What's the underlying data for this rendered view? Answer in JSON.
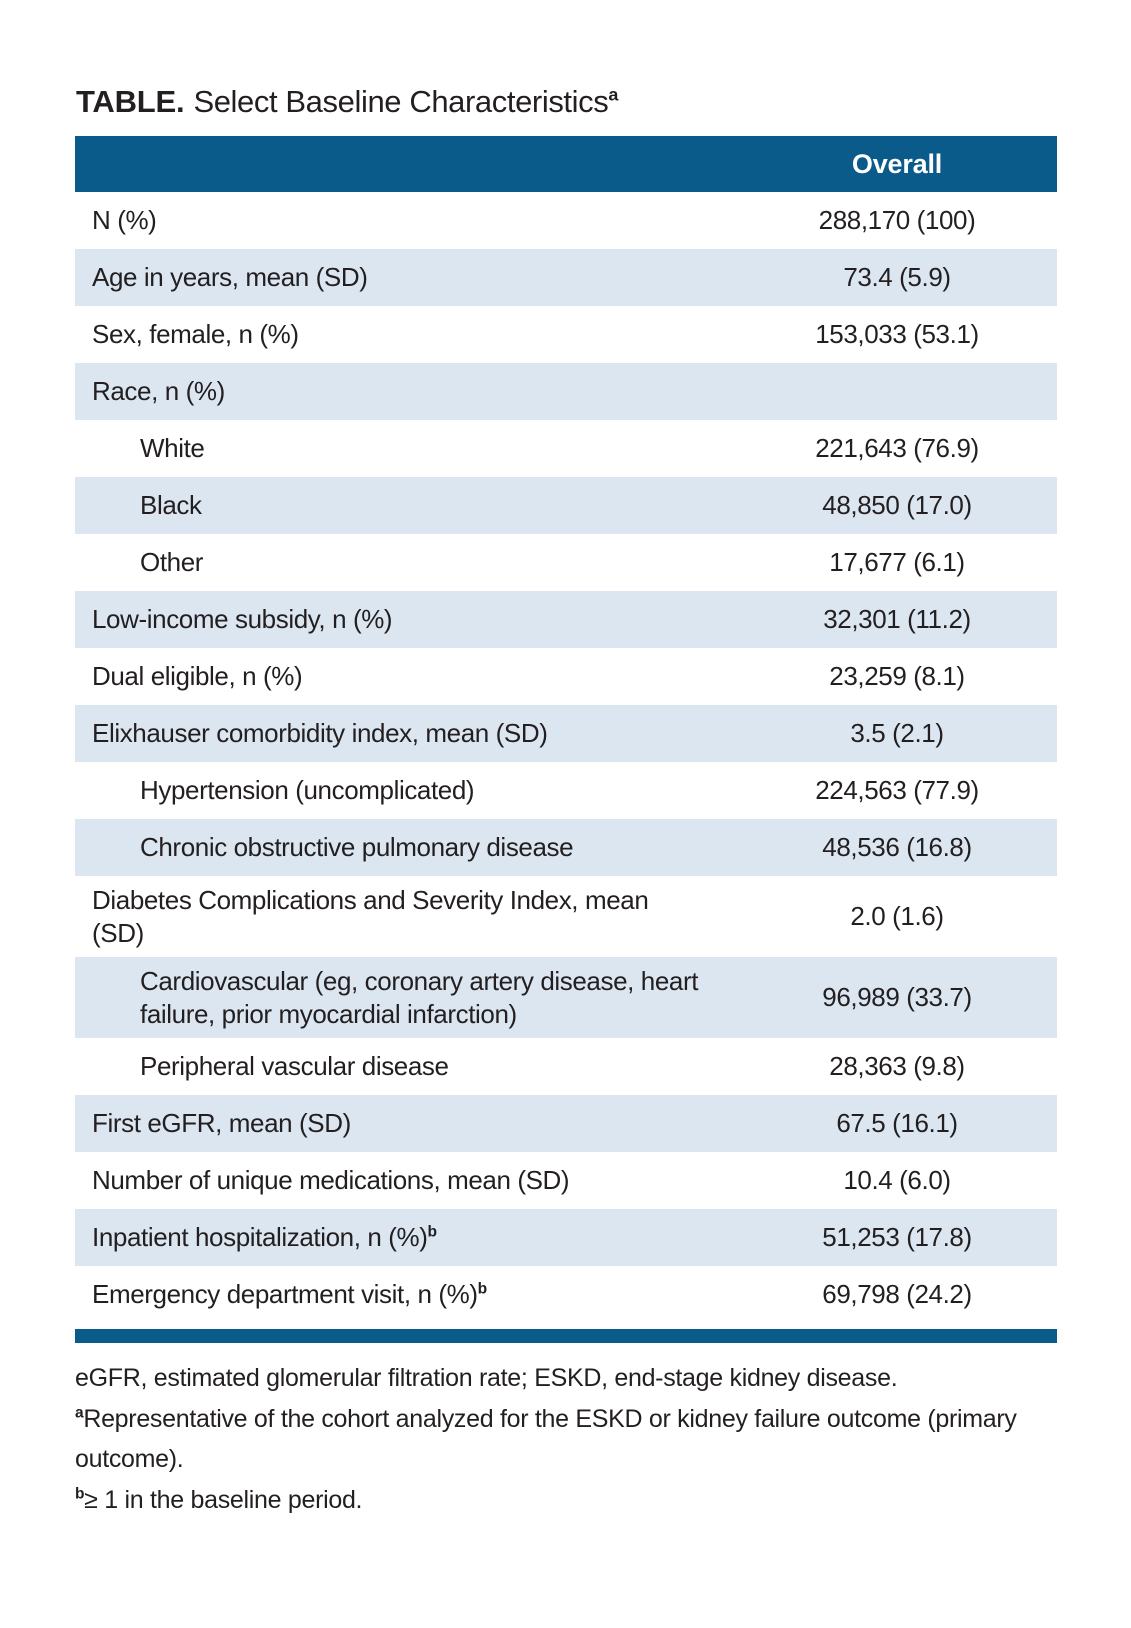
{
  "title": {
    "prefix": "TABLE.",
    "text": "Select Baseline Characteristics",
    "footnote_marker": "a"
  },
  "table": {
    "column_header": "Overall",
    "rows": [
      {
        "label": "N (%)",
        "value": "288,170 (100)",
        "indent": false,
        "footnote_marker": ""
      },
      {
        "label": "Age in years, mean (SD)",
        "value": "73.4 (5.9)",
        "indent": false,
        "footnote_marker": ""
      },
      {
        "label": "Sex, female, n (%)",
        "value": "153,033 (53.1)",
        "indent": false,
        "footnote_marker": ""
      },
      {
        "label": "Race, n (%)",
        "value": "",
        "indent": false,
        "footnote_marker": ""
      },
      {
        "label": "White",
        "value": "221,643 (76.9)",
        "indent": true,
        "footnote_marker": ""
      },
      {
        "label": "Black",
        "value": "48,850 (17.0)",
        "indent": true,
        "footnote_marker": ""
      },
      {
        "label": "Other",
        "value": "17,677 (6.1)",
        "indent": true,
        "footnote_marker": ""
      },
      {
        "label": "Low-income subsidy, n (%)",
        "value": "32,301 (11.2)",
        "indent": false,
        "footnote_marker": ""
      },
      {
        "label": "Dual eligible, n (%)",
        "value": "23,259 (8.1)",
        "indent": false,
        "footnote_marker": ""
      },
      {
        "label": "Elixhauser comorbidity index, mean (SD)",
        "value": "3.5 (2.1)",
        "indent": false,
        "footnote_marker": ""
      },
      {
        "label": "Hypertension (uncomplicated)",
        "value": "224,563 (77.9)",
        "indent": true,
        "footnote_marker": ""
      },
      {
        "label": "Chronic obstructive pulmonary disease",
        "value": "48,536 (16.8)",
        "indent": true,
        "footnote_marker": ""
      },
      {
        "label": "Diabetes Complications and Severity Index, mean (SD)",
        "value": "2.0 (1.6)",
        "indent": false,
        "footnote_marker": ""
      },
      {
        "label": "Cardiovascular (eg, coronary artery disease, heart failure, prior myocardial infarction)",
        "value": "96,989 (33.7)",
        "indent": true,
        "footnote_marker": ""
      },
      {
        "label": "Peripheral vascular disease",
        "value": "28,363 (9.8)",
        "indent": true,
        "footnote_marker": ""
      },
      {
        "label": "First eGFR, mean (SD)",
        "value": "67.5 (16.1)",
        "indent": false,
        "footnote_marker": ""
      },
      {
        "label": "Number of unique medications, mean (SD)",
        "value": "10.4 (6.0)",
        "indent": false,
        "footnote_marker": ""
      },
      {
        "label": "Inpatient hospitalization, n (%)",
        "value": "51,253 (17.8)",
        "indent": false,
        "footnote_marker": "b"
      },
      {
        "label": "Emergency department visit, n (%)",
        "value": "69,798 (24.2)",
        "indent": false,
        "footnote_marker": "b"
      }
    ]
  },
  "footnotes": [
    {
      "marker": "",
      "text": "eGFR, estimated glomerular filtration rate; ESKD, end-stage kidney disease."
    },
    {
      "marker": "a",
      "text": "Representative of the cohort analyzed for the ESKD or kidney failure outcome (primary outcome)."
    },
    {
      "marker": "b",
      "text": "≥ 1 in the baseline period."
    }
  ],
  "colors": {
    "header_blue": "#0a5a8a",
    "row_shade_blue": "#dbe6f1",
    "text": "#231f20"
  }
}
